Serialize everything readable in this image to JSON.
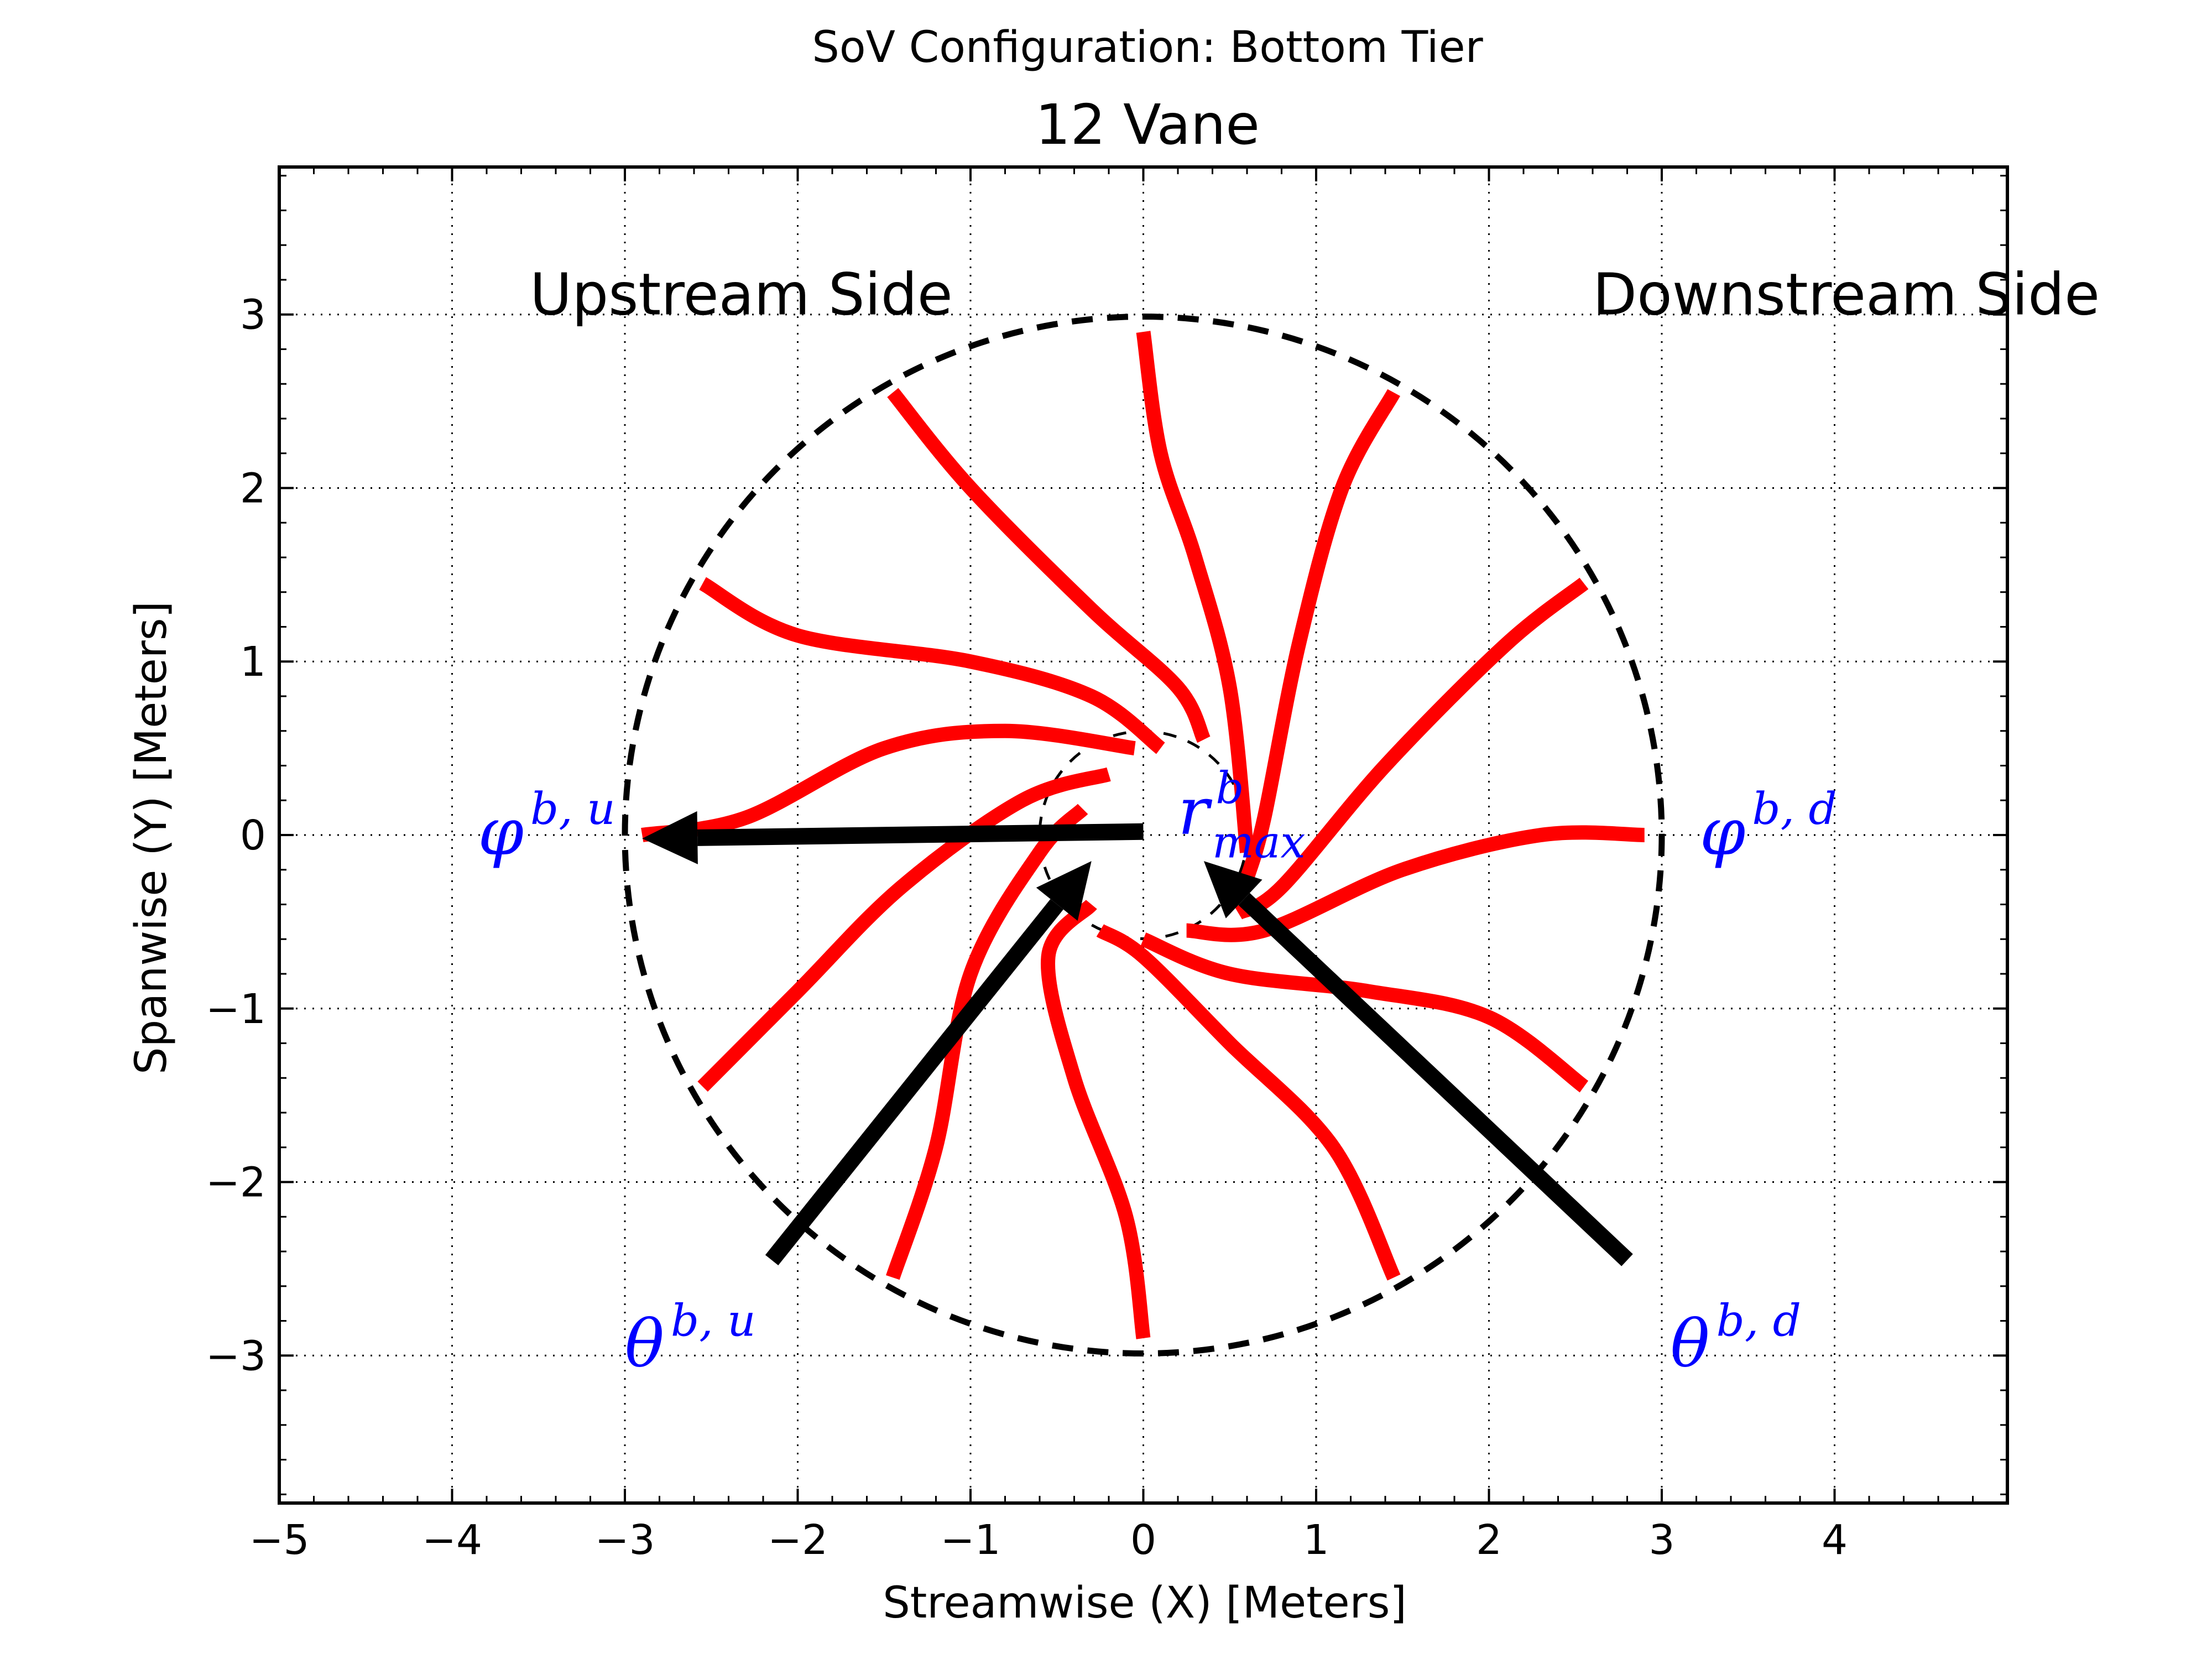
{
  "chart_data": {
    "type": "line",
    "suptitle": "SoV Configuration: Bottom Tier",
    "title": "12 Vane",
    "xlabel": "Streamwise (X) [Meters]",
    "ylabel": "Spanwise (Y) [Meters]",
    "xlim": [
      -5,
      5
    ],
    "ylim": [
      -3.85,
      3.85
    ],
    "xticks": [
      -5,
      -4,
      -3,
      -2,
      -1,
      0,
      1,
      2,
      3,
      4
    ],
    "yticks": [
      -3,
      -2,
      -1,
      0,
      1,
      2,
      3
    ],
    "xtick_labels": [
      "−5",
      "−4",
      "−3",
      "−2",
      "−1",
      "0",
      "1",
      "2",
      "3",
      "4"
    ],
    "ytick_labels": [
      "−3",
      "−2",
      "−1",
      "0",
      "1",
      "2",
      "3"
    ],
    "grid": true,
    "outer_circle": {
      "radius": 3.0,
      "color": "#000000",
      "style": "dashed"
    },
    "inner_circle": {
      "radius": 0.6,
      "color": "#000000",
      "style": "dashed"
    },
    "vanes": {
      "count": 12,
      "color": "#ff0000",
      "curves": [
        [
          [
            0.0,
            2.9
          ],
          [
            0.1,
            2.2
          ],
          [
            0.3,
            1.6
          ],
          [
            0.5,
            0.85
          ],
          [
            0.6,
            -0.1
          ]
        ],
        [
          [
            1.45,
            2.55
          ],
          [
            1.15,
            2.0
          ],
          [
            0.9,
            1.1
          ],
          [
            0.7,
            0.1
          ],
          [
            0.6,
            -0.25
          ]
        ],
        [
          [
            2.55,
            1.45
          ],
          [
            2.1,
            1.1
          ],
          [
            1.4,
            0.4
          ],
          [
            0.8,
            -0.3
          ],
          [
            0.55,
            -0.45
          ]
        ],
        [
          [
            2.9,
            0.0
          ],
          [
            2.3,
            0.0
          ],
          [
            1.5,
            -0.2
          ],
          [
            0.7,
            -0.55
          ],
          [
            0.25,
            -0.55
          ]
        ],
        [
          [
            2.55,
            -1.45
          ],
          [
            2.0,
            -1.05
          ],
          [
            1.3,
            -0.9
          ],
          [
            0.5,
            -0.8
          ],
          [
            0.0,
            -0.6
          ]
        ],
        [
          [
            1.45,
            -2.55
          ],
          [
            1.1,
            -1.8
          ],
          [
            0.5,
            -1.2
          ],
          [
            0.0,
            -0.7
          ],
          [
            -0.25,
            -0.55
          ]
        ],
        [
          [
            0.0,
            -2.9
          ],
          [
            -0.1,
            -2.2
          ],
          [
            -0.4,
            -1.4
          ],
          [
            -0.55,
            -0.7
          ],
          [
            -0.3,
            -0.4
          ]
        ],
        [
          [
            -1.45,
            -2.55
          ],
          [
            -1.2,
            -1.8
          ],
          [
            -1.0,
            -0.8
          ],
          [
            -0.6,
            -0.1
          ],
          [
            -0.35,
            0.15
          ]
        ],
        [
          [
            -2.55,
            -1.45
          ],
          [
            -2.0,
            -0.9
          ],
          [
            -1.4,
            -0.3
          ],
          [
            -0.7,
            0.2
          ],
          [
            -0.2,
            0.35
          ]
        ],
        [
          [
            -2.9,
            0.0
          ],
          [
            -2.3,
            0.1
          ],
          [
            -1.5,
            0.5
          ],
          [
            -0.8,
            0.6
          ],
          [
            -0.05,
            0.5
          ]
        ],
        [
          [
            -2.55,
            1.45
          ],
          [
            -2.0,
            1.15
          ],
          [
            -1.0,
            1.0
          ],
          [
            -0.3,
            0.8
          ],
          [
            0.1,
            0.5
          ]
        ],
        [
          [
            -1.45,
            2.55
          ],
          [
            -1.0,
            2.0
          ],
          [
            -0.3,
            1.3
          ],
          [
            0.2,
            0.85
          ],
          [
            0.35,
            0.55
          ]
        ]
      ]
    },
    "arrows": [
      {
        "from": [
          0.0,
          0.02
        ],
        "to": [
          -2.9,
          -0.02
        ]
      },
      {
        "from": [
          -2.15,
          -2.45
        ],
        "to": [
          -0.3,
          -0.15
        ]
      },
      {
        "from": [
          2.8,
          -2.45
        ],
        "to": [
          0.35,
          -0.15
        ]
      }
    ],
    "annotations": [
      {
        "text": "Upstream Side",
        "x": -3.55,
        "y": 3.0,
        "anchor": "start",
        "style": "sans",
        "color": "#000000"
      },
      {
        "text": "Downstream Side",
        "x": 2.6,
        "y": 3.0,
        "anchor": "start",
        "style": "sans",
        "color": "#000000"
      },
      {
        "text": "φ",
        "sup": "b, u",
        "x": -3.85,
        "y": 0.0,
        "anchor": "start",
        "style": "math",
        "color": "#0000ff"
      },
      {
        "text": "φ",
        "sup": "b, d",
        "x": 3.22,
        "y": 0.0,
        "anchor": "start",
        "style": "math",
        "color": "#0000ff"
      },
      {
        "text": "θ",
        "sup": "b, u",
        "x": -3.0,
        "y": -2.95,
        "anchor": "start",
        "style": "math",
        "color": "#0000ff"
      },
      {
        "text": "θ",
        "sup": "b, d",
        "x": 3.05,
        "y": -2.95,
        "anchor": "start",
        "style": "math",
        "color": "#0000ff"
      },
      {
        "text": "r",
        "sup": "b",
        "sub": "max",
        "x": 0.2,
        "y": 0.12,
        "anchor": "start",
        "style": "math",
        "color": "#0000ff"
      }
    ]
  }
}
